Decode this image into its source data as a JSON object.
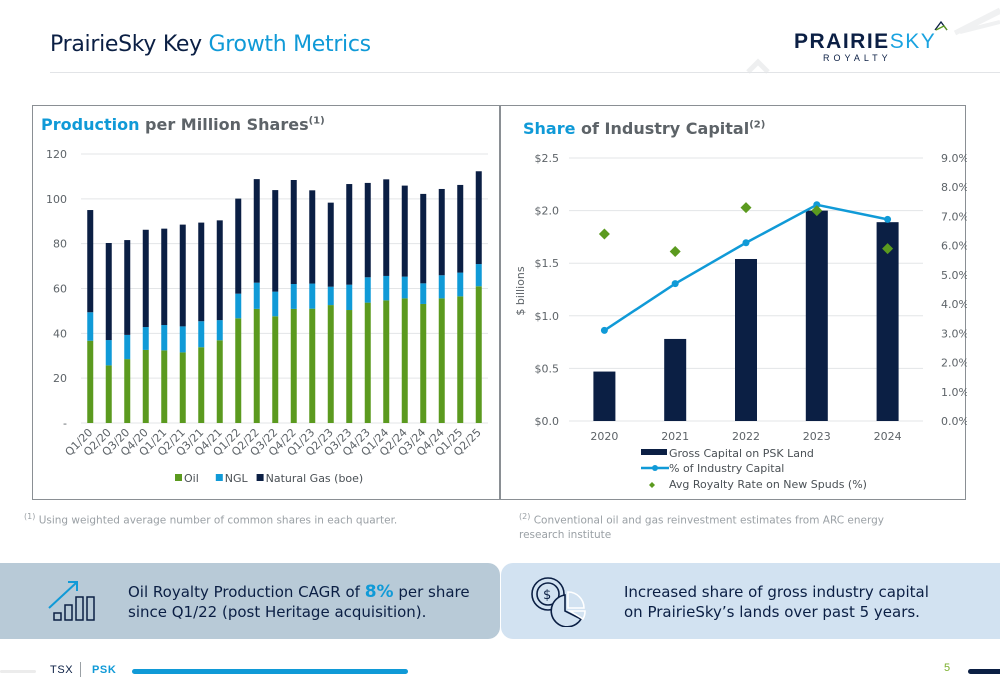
{
  "page": {
    "title_part1": "PrairieSky Key",
    "title_part2": "Growth Metrics",
    "logo": {
      "main_dark": "PRAIRIE",
      "main_light": "SKY",
      "sub": "ROYALTY"
    },
    "page_number": "5",
    "footer": {
      "exchange": "TSX",
      "ticker": "PSK"
    }
  },
  "colors": {
    "navy": "#0b1f44",
    "blue": "#109ad7",
    "green": "#5b9a1f",
    "gray_text": "#5d6368"
  },
  "panels": {
    "left": {
      "title_highlight": "Production",
      "title_rest": "per Million Shares",
      "title_sup": "(1)"
    },
    "right": {
      "title_highlight": "Share",
      "title_rest": "of Industry Capital",
      "title_sup": "(2)"
    }
  },
  "footnotes": {
    "left": {
      "sup": "(1)",
      "text": "Using weighted average number of common shares in each quarter."
    },
    "right": {
      "sup": "(2)",
      "text_line1": "Conventional oil and gas reinvestment estimates from ARC energy",
      "text_line2": "research institute"
    }
  },
  "callouts": {
    "left": {
      "icon": "growth-chart-icon",
      "line1_pre": "Oil Royalty Production CAGR of",
      "line1_pct": "8%",
      "line1_post": "per share",
      "line2": "since Q1/22 (post Heritage acquisition)."
    },
    "right": {
      "icon": "capital-pie-icon",
      "line1": "Increased share of gross industry capital",
      "line2": "on PrairieSky’s lands over past 5 years."
    }
  },
  "chart_data": [
    {
      "type": "bar",
      "stacked": true,
      "title": "Production per Million Shares(1)",
      "xlabel": "",
      "ylabel": "",
      "ylim": [
        0,
        120
      ],
      "yticks": [
        0,
        20,
        40,
        60,
        80,
        100,
        120
      ],
      "ytick_labels": [
        "-",
        "20",
        "40",
        "60",
        "80",
        "100",
        "120"
      ],
      "grid": true,
      "legend_position": "bottom",
      "categories": [
        "Q1/20",
        "Q2/20",
        "Q3/20",
        "Q4/20",
        "Q1/21",
        "Q2/21",
        "Q3/21",
        "Q4/21",
        "Q1/22",
        "Q2/22",
        "Q3/22",
        "Q4/22",
        "Q1/23",
        "Q2/23",
        "Q3/23",
        "Q4/23",
        "Q1/24",
        "Q2/24",
        "Q3/24",
        "Q4/24",
        "Q1/25",
        "Q2/25"
      ],
      "series": [
        {
          "name": "Oil",
          "color": "#5b9a1f",
          "values": [
            36.7,
            25.7,
            28.5,
            32.6,
            32.4,
            31.5,
            33.8,
            36.9,
            46.7,
            50.9,
            47.6,
            50.9,
            51.0,
            52.6,
            50.4,
            53.7,
            54.7,
            55.6,
            53.1,
            55.6,
            56.5,
            61.0
          ]
        },
        {
          "name": "NGL",
          "color": "#109ad7",
          "values": [
            12.7,
            11.3,
            10.8,
            10.2,
            11.3,
            11.6,
            11.6,
            9.0,
            11.0,
            11.7,
            11.0,
            11.1,
            11.2,
            8.2,
            11.3,
            11.3,
            10.9,
            9.7,
            9.2,
            10.3,
            10.6,
            9.9
          ]
        },
        {
          "name": "Natural Gas (boe)",
          "color": "#0b1f44",
          "values": [
            45.6,
            43.3,
            42.3,
            43.4,
            43.0,
            45.4,
            44.0,
            44.5,
            42.4,
            46.2,
            45.3,
            46.4,
            41.6,
            37.5,
            44.9,
            42.1,
            43.1,
            40.6,
            39.9,
            38.5,
            39.1,
            41.4
          ]
        }
      ]
    },
    {
      "type": "bar",
      "combo": true,
      "title": "Share of Industry Capital(2)",
      "xlabel": "",
      "ylabel": "$ billions",
      "ylim": [
        0,
        2.5
      ],
      "yticks": [
        0,
        0.5,
        1.0,
        1.5,
        2.0,
        2.5
      ],
      "ytick_labels": [
        "$0.0",
        "$0.5",
        "$1.0",
        "$1.5",
        "$2.0",
        "$2.5"
      ],
      "y2lim": [
        0,
        9
      ],
      "y2ticks": [
        0,
        1,
        2,
        3,
        4,
        5,
        6,
        7,
        8,
        9
      ],
      "y2tick_labels": [
        "0.0%",
        "1.0%",
        "2.0%",
        "3.0%",
        "4.0%",
        "5.0%",
        "6.0%",
        "7.0%",
        "8.0%",
        "9.0%"
      ],
      "grid": true,
      "legend_position": "bottom",
      "categories": [
        "2020",
        "2021",
        "2022",
        "2023",
        "2024"
      ],
      "series": [
        {
          "name": "Gross Capital on PSK Land",
          "type": "bar",
          "axis": "left",
          "color": "#0b1f44",
          "values": [
            0.47,
            0.78,
            1.54,
            2.0,
            1.89
          ]
        },
        {
          "name": "% of Industry Capital",
          "type": "line",
          "axis": "right",
          "color": "#109ad7",
          "values": [
            3.1,
            4.7,
            6.1,
            7.4,
            6.9
          ]
        },
        {
          "name": "Avg Royalty Rate on New Spuds (%)",
          "type": "scatter",
          "marker": "diamond",
          "axis": "right",
          "color": "#5b9a1f",
          "values": [
            6.4,
            5.8,
            7.3,
            7.2,
            5.9
          ]
        }
      ]
    }
  ]
}
